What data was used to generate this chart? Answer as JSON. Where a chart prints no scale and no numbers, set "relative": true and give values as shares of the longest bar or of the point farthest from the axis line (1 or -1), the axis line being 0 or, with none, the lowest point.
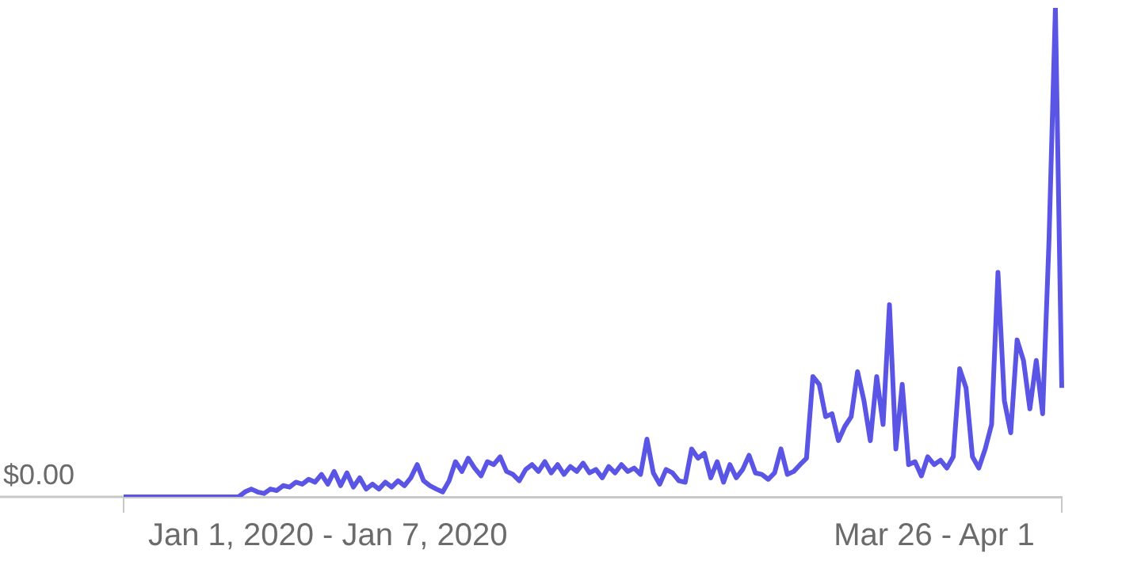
{
  "chart_data": {
    "type": "line",
    "relative": true,
    "categories": [
      null,
      null,
      null,
      null,
      null,
      null,
      null,
      null,
      null,
      null,
      null,
      null,
      null,
      null,
      null,
      null,
      null,
      null,
      null,
      null,
      null,
      null,
      null,
      null,
      null,
      null,
      null,
      null,
      null,
      null,
      null,
      null,
      "Jan 1, 2020 - Jan 7, 2020",
      null,
      null,
      null,
      null,
      null,
      null,
      null,
      null,
      null,
      null,
      null,
      null,
      null,
      null,
      null,
      null,
      null,
      null,
      null,
      null,
      null,
      null,
      null,
      null,
      null,
      null,
      null,
      null,
      null,
      null,
      null,
      null,
      null,
      null,
      null,
      null,
      null,
      null,
      null,
      null,
      null,
      null,
      null,
      null,
      null,
      null,
      null,
      null,
      null,
      null,
      null,
      null,
      null,
      null,
      null,
      null,
      null,
      null,
      null,
      null,
      null,
      null,
      null,
      null,
      null,
      null,
      null,
      null,
      null,
      null,
      null,
      null,
      null,
      null,
      null,
      null,
      null,
      null,
      null,
      null,
      null,
      null,
      null,
      null,
      null,
      null,
      null,
      null,
      null,
      null,
      null,
      null,
      null,
      null,
      "Mar 26 - Apr 1",
      null,
      null,
      null,
      null,
      null,
      null,
      null,
      null,
      null,
      null,
      null,
      null,
      null,
      null,
      null,
      null,
      null,
      null,
      null,
      null
    ],
    "series": [
      {
        "color": "#5b55e6",
        "values": [
          0,
          0,
          0,
          0,
          0,
          0,
          0,
          0,
          0,
          0,
          0,
          0,
          0,
          0,
          0,
          0,
          0,
          0,
          0,
          0.01,
          0.016,
          0.01,
          0.007,
          0.016,
          0.013,
          0.023,
          0.02,
          0.03,
          0.026,
          0.036,
          0.03,
          0.046,
          0.026,
          0.052,
          0.023,
          0.049,
          0.02,
          0.039,
          0.016,
          0.026,
          0.016,
          0.03,
          0.02,
          0.033,
          0.023,
          0.039,
          0.066,
          0.033,
          0.023,
          0.016,
          0.01,
          0.033,
          0.072,
          0.052,
          0.079,
          0.059,
          0.043,
          0.072,
          0.066,
          0.082,
          0.052,
          0.046,
          0.033,
          0.056,
          0.066,
          0.052,
          0.072,
          0.049,
          0.066,
          0.046,
          0.062,
          0.052,
          0.069,
          0.049,
          0.056,
          0.039,
          0.062,
          0.049,
          0.066,
          0.052,
          0.059,
          0.046,
          0.118,
          0.049,
          0.026,
          0.056,
          0.049,
          0.033,
          0.03,
          0.098,
          0.079,
          0.089,
          0.039,
          0.072,
          0.03,
          0.066,
          0.039,
          0.056,
          0.085,
          0.049,
          0.046,
          0.036,
          0.049,
          0.098,
          0.046,
          0.052,
          0.066,
          0.079,
          0.246,
          0.23,
          0.164,
          0.17,
          0.115,
          0.144,
          0.164,
          0.256,
          0.197,
          0.115,
          0.246,
          0.148,
          0.393,
          0.098,
          0.23,
          0.066,
          0.072,
          0.043,
          0.082,
          0.066,
          0.075,
          0.059,
          0.082,
          0.262,
          0.223,
          0.082,
          0.059,
          0.098,
          0.148,
          0.459,
          0.197,
          0.131,
          0.321,
          0.279,
          0.18,
          0.279,
          0.17,
          0.525,
          1,
          0.223
        ]
      }
    ],
    "annotations": [
      "$0.00"
    ],
    "legend": false,
    "grid": false
  }
}
